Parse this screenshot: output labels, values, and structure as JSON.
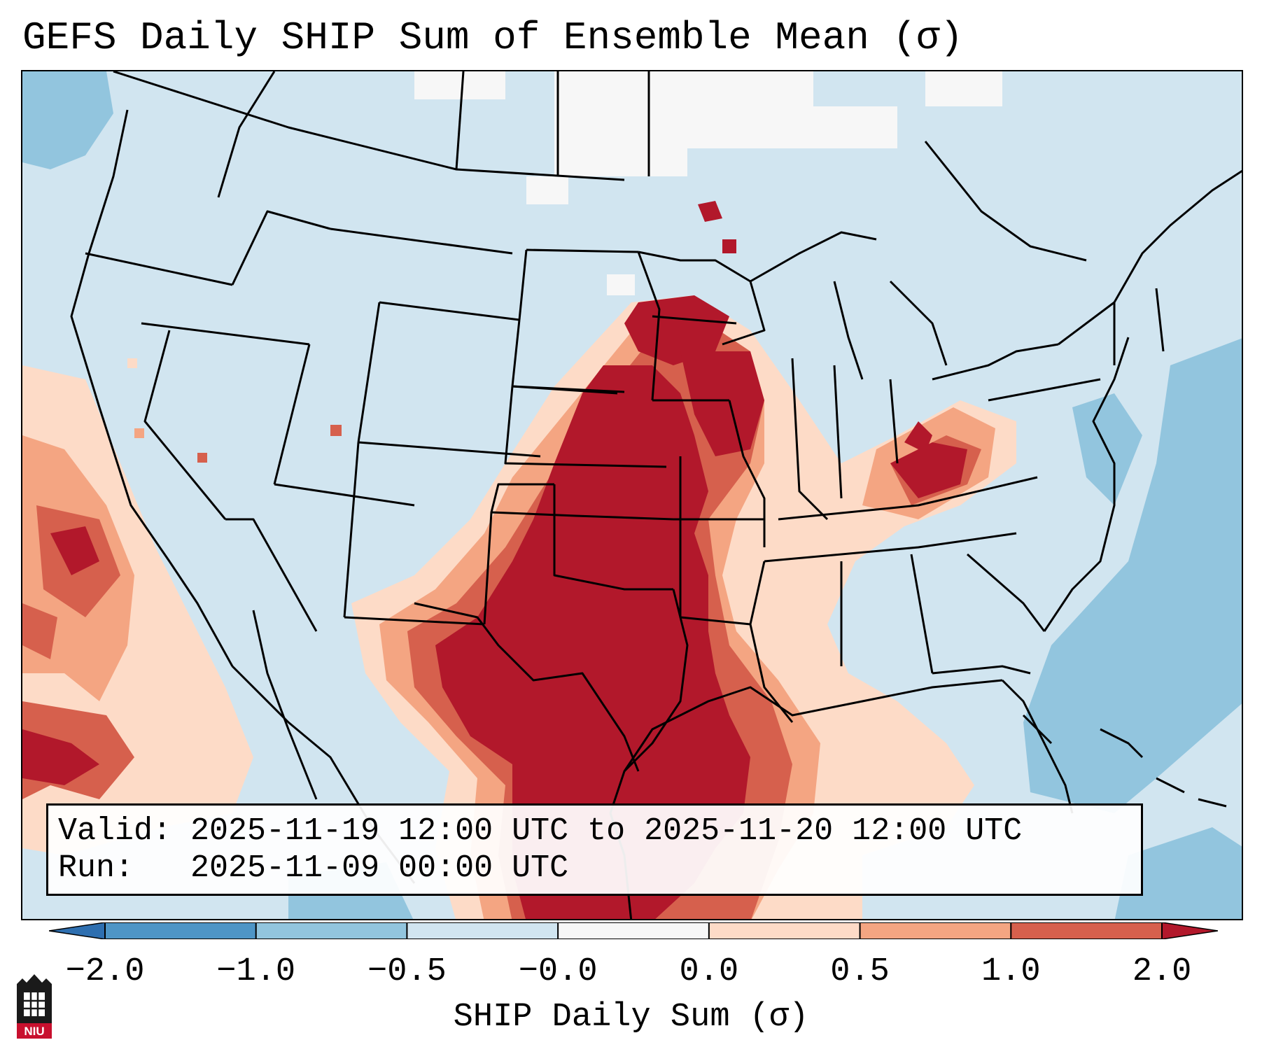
{
  "title": "GEFS Daily SHIP Sum of Ensemble Mean (σ)",
  "info": {
    "valid_line": "Valid: 2025-11-19 12:00 UTC to 2025-11-20 12:00 UTC",
    "run_line": "Run:   2025-11-09 00:00 UTC"
  },
  "colorbar": {
    "label": "SHIP Daily Sum (σ)",
    "ticks": [
      "−2.0",
      "−1.0",
      "−0.5",
      "−0.0",
      "0.0",
      "0.5",
      "1.0",
      "2.0"
    ],
    "colors": [
      "#2e6fb0",
      "#4e95c6",
      "#92c5de",
      "#d1e5f0",
      "#f7f7f7",
      "#fddbc7",
      "#f4a582",
      "#d6604d",
      "#b2182b"
    ]
  },
  "logo_text": "NIU",
  "map": {
    "region": "Continental United States",
    "palette": {
      "strong_pos": "#b2182b",
      "pos": "#d6604d",
      "weak_pos": "#f4a582",
      "slight_pos": "#fddbc7",
      "neutral": "#f7f7f7",
      "slight_neg": "#d1e5f0",
      "neg": "#92c5de"
    }
  }
}
